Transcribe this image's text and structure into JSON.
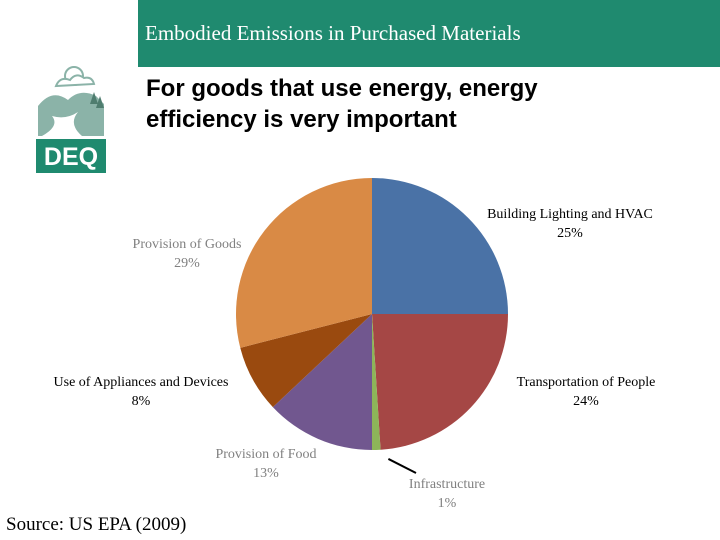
{
  "slide": {
    "title": "Embodied Emissions in Purchased Materials",
    "subtitle_lines": [
      "For goods that use energy, energy",
      "efficiency is very important"
    ],
    "source": "Source: US EPA (2009)",
    "logo_text": "DEQ",
    "colors": {
      "title_bar": "#1f8a6f",
      "logo_green": "#1f8a6f",
      "logo_light": "#8bb3a8"
    }
  },
  "chart_data": {
    "type": "pie",
    "title": "",
    "slices": [
      {
        "name": "Building Lighting and HVAC",
        "value": 25,
        "label_pct": "25%",
        "color": "#4a72a6"
      },
      {
        "name": "Transportation of People",
        "value": 24,
        "label_pct": "24%",
        "color": "#a54745"
      },
      {
        "name": "Infrastructure",
        "value": 1,
        "label_pct": "1%",
        "color": "#8db559"
      },
      {
        "name": "Provision of Food",
        "value": 13,
        "label_pct": "13%",
        "color": "#71578f"
      },
      {
        "name": "Use of Appliances and Devices",
        "value": 8,
        "label_pct": "8%",
        "color": "#9a4a0f"
      },
      {
        "name": "Provision of Goods",
        "value": 29,
        "label_pct": "29%",
        "color": "#d98a45"
      }
    ],
    "label_colors": [
      "#000000",
      "#000000",
      "#808080",
      "#808080",
      "#000000",
      "#808080"
    ]
  }
}
